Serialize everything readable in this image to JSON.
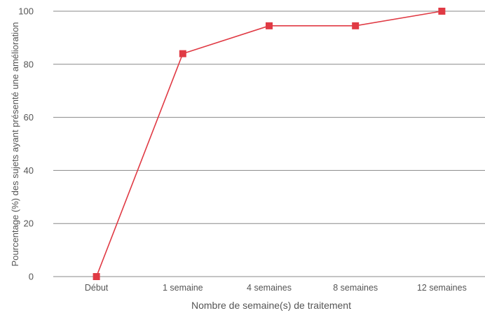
{
  "chart_data": {
    "type": "line",
    "categories": [
      "Début",
      "1 semaine",
      "4 semaines",
      "8 semaines",
      "12 semaines"
    ],
    "series": [
      {
        "values": [
          0,
          84,
          94.5,
          94.5,
          100
        ]
      }
    ],
    "xlabel": "Nombre de semaine(s) de traitement",
    "ylabel": "Pourcentage (%) des sujets ayant présenté une amélioration",
    "ylim": [
      0,
      100
    ],
    "yticks": [
      0,
      20,
      40,
      60,
      80,
      100
    ],
    "grid": true,
    "colors": {
      "line": "#e03a44",
      "marker": "#e03a44",
      "grid": "#888888",
      "text": "#555555"
    }
  }
}
